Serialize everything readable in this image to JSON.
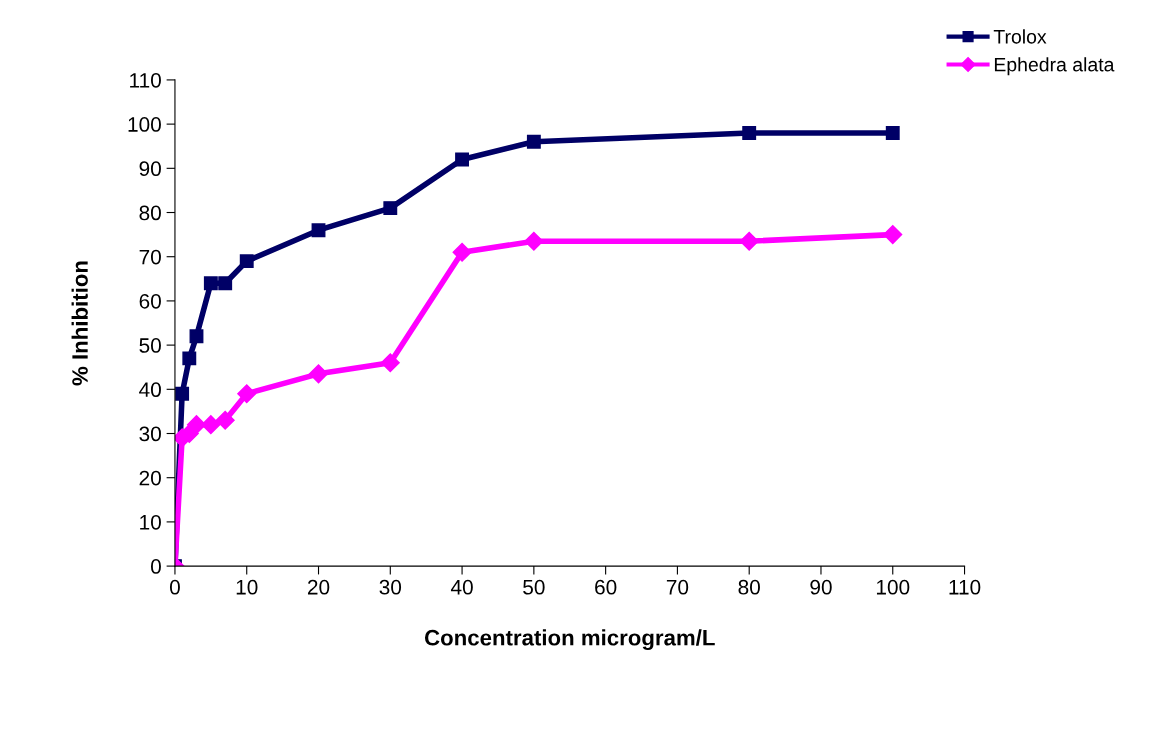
{
  "chart_data": {
    "type": "line",
    "xlabel": "Concentration microgram/L",
    "ylabel": "% Inhibition",
    "xlim": [
      0,
      110
    ],
    "xticks": [
      0,
      10,
      20,
      30,
      40,
      50,
      60,
      70,
      80,
      90,
      100,
      110
    ],
    "ylim": [
      0,
      110
    ],
    "yticks": [
      0,
      10,
      20,
      30,
      40,
      50,
      60,
      70,
      80,
      90,
      100,
      110
    ],
    "grid": false,
    "legend": "top right",
    "line_style": "solid",
    "series": [
      {
        "name": "Trolox",
        "color": "#000066",
        "marker": "square",
        "x": [
          0,
          1,
          2,
          3,
          5,
          7,
          10,
          20,
          30,
          40,
          50,
          80,
          100
        ],
        "values": [
          0,
          39,
          47,
          52,
          64,
          64,
          69,
          76,
          81,
          92,
          96,
          98,
          98
        ]
      },
      {
        "name": "Ephedra alata",
        "color": "#ff00ff",
        "marker": "diamond",
        "x": [
          0,
          1,
          2,
          3,
          5,
          7,
          10,
          20,
          30,
          40,
          50,
          80,
          100
        ],
        "values": [
          0,
          29,
          30,
          32,
          32,
          33,
          39,
          43.5,
          46,
          71,
          73.5,
          73.5,
          75
        ]
      }
    ]
  }
}
